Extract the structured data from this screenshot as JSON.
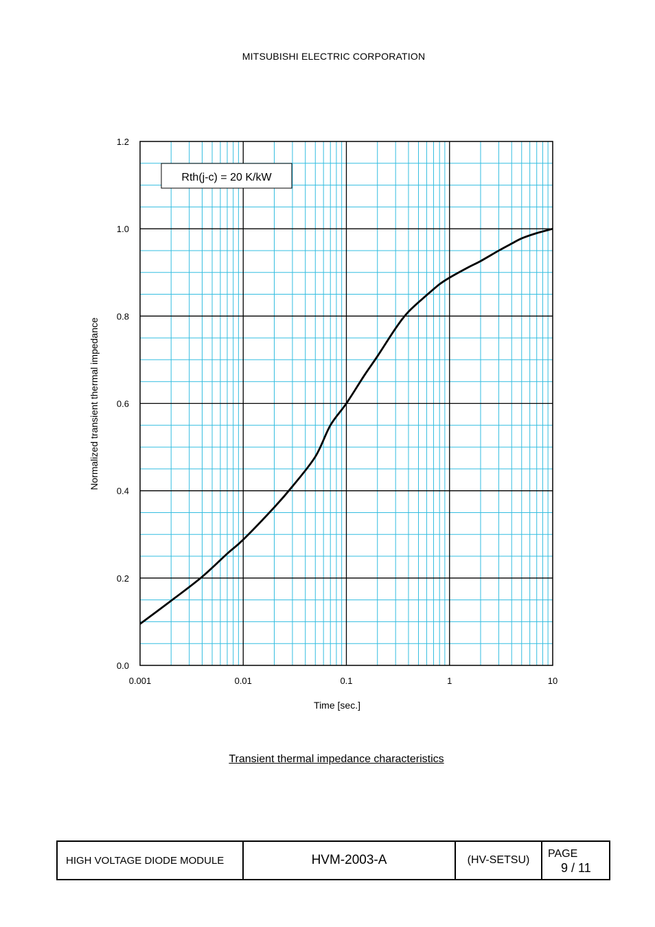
{
  "header": {
    "company": "MITSUBISHI ELECTRIC CORPORATION"
  },
  "caption": "Transient thermal impedance characteristics",
  "footer": {
    "product": "HIGH VOLTAGE DIODE MODULE",
    "doc_number": "HVM-2003-A",
    "code": "(HV-SETSU)",
    "page_label": "PAGE",
    "page_number": "9 / 11"
  },
  "chart_data": {
    "type": "line",
    "title": "",
    "xlabel": "Time [sec.]",
    "ylabel": "Normalized transient thermal impedance",
    "x_scale": "log",
    "xlim": [
      0.001,
      10
    ],
    "ylim": [
      0.0,
      1.2
    ],
    "x_ticks": [
      "0.001",
      "0.01",
      "0.1",
      "1",
      "10"
    ],
    "y_ticks": [
      "0.0",
      "0.2",
      "0.4",
      "0.6",
      "0.8",
      "1.0",
      "1.2"
    ],
    "grid": true,
    "grid_color": "#33bde0",
    "annotation": "Rth(j-c) = 20 K/kW",
    "series": [
      {
        "color": "#000000",
        "x": [
          0.001,
          0.002,
          0.004,
          0.007,
          0.01,
          0.02,
          0.03,
          0.05,
          0.07,
          0.1,
          0.15,
          0.2,
          0.3,
          0.4,
          0.6,
          0.8,
          1,
          1.5,
          2,
          3,
          4,
          5,
          7,
          10
        ],
        "y": [
          0.095,
          0.148,
          0.203,
          0.256,
          0.288,
          0.362,
          0.41,
          0.478,
          0.55,
          0.6,
          0.665,
          0.708,
          0.772,
          0.81,
          0.848,
          0.873,
          0.888,
          0.911,
          0.926,
          0.95,
          0.966,
          0.978,
          0.99,
          1.0
        ]
      }
    ]
  }
}
